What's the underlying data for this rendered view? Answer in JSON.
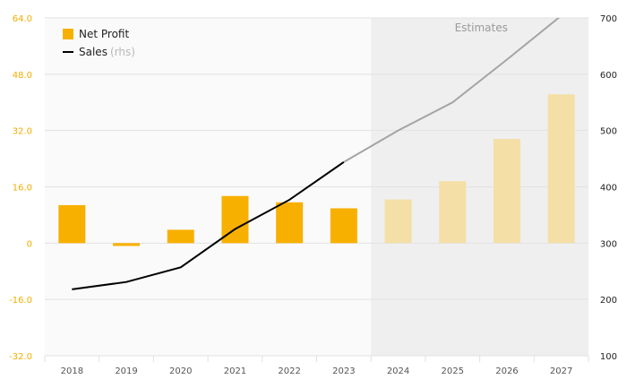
{
  "chart_data": {
    "type": "bar",
    "categories": [
      "2018",
      "2019",
      "2020",
      "2021",
      "2022",
      "2023",
      "2024",
      "2025",
      "2026",
      "2027"
    ],
    "series": [
      {
        "name": "Net Profit",
        "kind": "bar",
        "axis": "left",
        "values": [
          10.8,
          -0.8,
          3.8,
          13.4,
          11.6,
          9.9,
          12.4,
          17.6,
          29.6,
          42.3
        ]
      },
      {
        "name": "Sales",
        "kind": "line",
        "axis": "right",
        "values": [
          218,
          231,
          257,
          325,
          377,
          444,
          500,
          550,
          626,
          704
        ]
      }
    ],
    "left_axis": {
      "ylim": [
        -32,
        64
      ],
      "ticks": [
        "64.0",
        "48.0",
        "32.0",
        "16.0",
        "0",
        "-16.0",
        "-32.0"
      ]
    },
    "right_axis": {
      "ylim": [
        100,
        700
      ],
      "ticks": [
        "700",
        "600",
        "500",
        "400",
        "300",
        "200",
        "100"
      ]
    },
    "estimate_start_index": 6,
    "estimate_label": "Estimates",
    "legend": {
      "net_profit_label": "Net Profit",
      "sales_label": "Sales",
      "sales_note": "(rhs)",
      "position": "top-left"
    },
    "colors": {
      "bar_actual": "#F8B000",
      "bar_estimate": "#F4DFA7",
      "line_actual": "#000000",
      "line_estimate": "#A4A4A4",
      "left_axis_text": "#F0AE00",
      "right_axis_text": "#222222",
      "shade": "#EFEFEF",
      "plot_background": "#FAFAFA",
      "grid": "#E2E2E2",
      "x_axis_text": "#555555"
    },
    "grid": true
  }
}
